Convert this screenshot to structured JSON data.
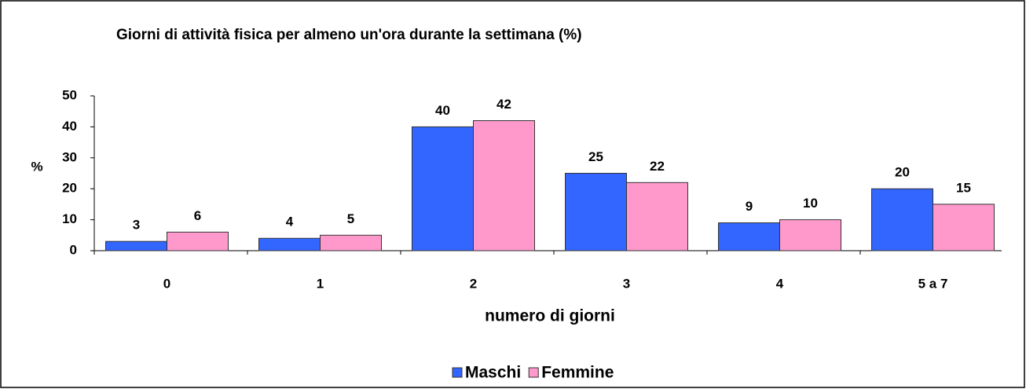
{
  "chart_data": {
    "type": "bar",
    "title": "Giorni di attività fisica per almeno un'ora durante la settimana (%)",
    "x_label": "numero di giorni",
    "y_label": "%",
    "categories": [
      "0",
      "1",
      "2",
      "3",
      "4",
      "5 a 7"
    ],
    "series": [
      {
        "name": "Maschi",
        "color": "#3366ff",
        "values": [
          3,
          4,
          40,
          25,
          9,
          20
        ]
      },
      {
        "name": "Femmine",
        "color": "#ff99cc",
        "values": [
          6,
          5,
          42,
          22,
          10,
          15
        ]
      }
    ],
    "ylim": [
      0,
      50
    ],
    "yticks": [
      0,
      10,
      20,
      30,
      40,
      50
    ],
    "grid": false,
    "legend": "bottom"
  }
}
